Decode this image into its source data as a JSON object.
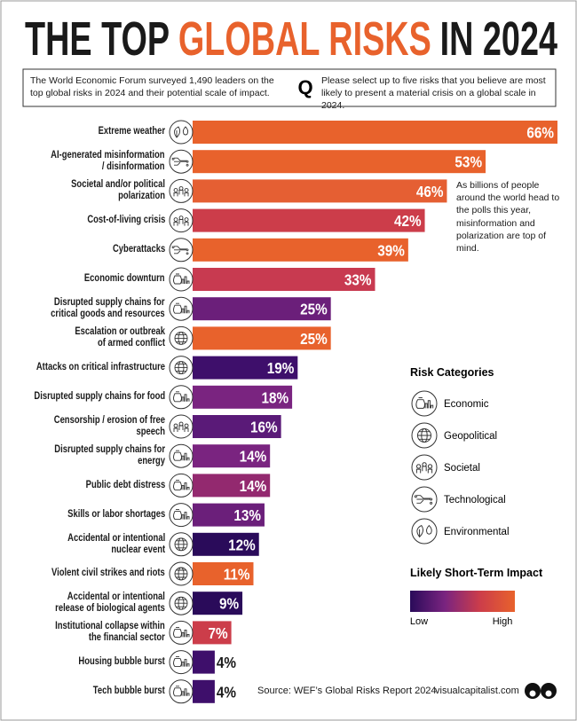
{
  "chart_data": {
    "type": "bar",
    "orientation": "horizontal",
    "title": [
      {
        "text": "THE TOP",
        "color": "#1a1a1a"
      },
      {
        "text": "GLOBAL RISKS",
        "color": "#e8622c"
      },
      {
        "text": "IN 2024",
        "color": "#1a1a1a"
      }
    ],
    "intro": "The World Economic Forum surveyed 1,490 leaders on the top global risks in 2024 and their potential scale of impact.",
    "question_mark": "Q",
    "question": "Please select up to five risks that you believe are most likely to present a material crisis on a global scale in 2024.",
    "categories": [
      "Extreme weather",
      "AI-generated misinformation\n/ disinformation",
      "Societal and/or political polarization",
      "Cost-of-living crisis",
      "Cyberattacks",
      "Economic downturn",
      "Disrupted supply chains for\ncritical goods and resources",
      "Escalation or outbreak\nof armed conflict",
      "Attacks on critical infrastructure",
      "Disrupted supply chains for food",
      "Censorship / erosion of free speech",
      "Disrupted supply chains for energy",
      "Public debt distress",
      "Skills or labor shortages",
      "Accidental or intentional\nnuclear event",
      "Violent civil strikes and riots",
      "Accidental or intentional\nrelease of biological agents",
      "Institutional collapse within\nthe financial sector",
      "Housing bubble burst",
      "Tech bubble burst"
    ],
    "values": [
      66,
      53,
      46,
      42,
      39,
      33,
      25,
      25,
      19,
      18,
      16,
      14,
      14,
      13,
      12,
      11,
      9,
      7,
      4,
      4
    ],
    "value_labels": [
      "66%",
      "53%",
      "46%",
      "42%",
      "39%",
      "33%",
      "25%",
      "25%",
      "19%",
      "18%",
      "16%",
      "14%",
      "14%",
      "13%",
      "12%",
      "11%",
      "9%",
      "7%",
      "4%",
      "4%"
    ],
    "colors": [
      "#e8622c",
      "#e8622c",
      "#e55f33",
      "#cc3d4a",
      "#e8622c",
      "#c83a50",
      "#6b1f7a",
      "#e8622c",
      "#3e0f6b",
      "#7a2480",
      "#5a1a78",
      "#7a2480",
      "#93296f",
      "#6b1f7a",
      "#2a0b5a",
      "#e8622c",
      "#2a0b5a",
      "#cc3d4a",
      "#3e0f6b",
      "#3e0f6b"
    ],
    "risk_categories": [
      "Environmental",
      "Technological",
      "Societal",
      "Societal",
      "Technological",
      "Economic",
      "Economic",
      "Geopolitical",
      "Geopolitical",
      "Economic",
      "Societal",
      "Economic",
      "Economic",
      "Economic",
      "Geopolitical",
      "Geopolitical",
      "Geopolitical",
      "Economic",
      "Economic",
      "Economic"
    ],
    "annotation": "As billions of people around the world head to the polls this year, misinformation and polarization are top of mind.",
    "legend": {
      "title": "Risk Categories",
      "items": [
        "Economic",
        "Geopolitical",
        "Societal",
        "Technological",
        "Environmental"
      ]
    },
    "impact_legend": {
      "title": "Likely Short-Term Impact",
      "low": "Low",
      "high": "High",
      "colors": [
        "#2a0b5a",
        "#7a2480",
        "#cc3d4a",
        "#e8622c"
      ]
    },
    "source": "Source: WEF’s Global Risks Report 2024",
    "brand": "visualcapitalist.com"
  }
}
